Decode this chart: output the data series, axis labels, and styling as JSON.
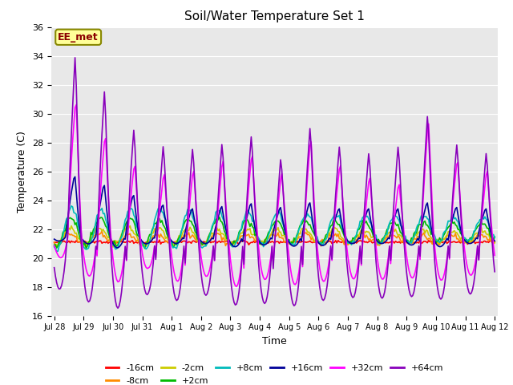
{
  "title": "Soil/Water Temperature Set 1",
  "xlabel": "Time",
  "ylabel": "Temperature (C)",
  "ylim": [
    16,
    36
  ],
  "annotation": "EE_met",
  "annotation_color": "#8B0000",
  "annotation_bg": "#FFFF99",
  "series": {
    "neg16cm": {
      "label": "-16cm",
      "color": "#FF0000",
      "linewidth": 1.2
    },
    "neg8cm": {
      "label": "-8cm",
      "color": "#FF8C00",
      "linewidth": 1.2
    },
    "neg2cm": {
      "label": "-2cm",
      "color": "#CCCC00",
      "linewidth": 1.2
    },
    "pos2cm": {
      "label": "+2cm",
      "color": "#00BB00",
      "linewidth": 1.2
    },
    "pos8cm": {
      "label": "+8cm",
      "color": "#00BBBB",
      "linewidth": 1.2
    },
    "pos16cm": {
      "label": "+16cm",
      "color": "#000099",
      "linewidth": 1.2
    },
    "pos32cm": {
      "label": "+32cm",
      "color": "#FF00FF",
      "linewidth": 1.2
    },
    "pos64cm": {
      "label": "+64cm",
      "color": "#8800BB",
      "linewidth": 1.2
    }
  },
  "tick_labels": [
    "Jul 28",
    "Jul 29",
    "Jul 30",
    "Jul 31",
    "Aug 1",
    "Aug 2",
    "Aug 3",
    "Aug 4",
    "Aug 5",
    "Aug 6",
    "Aug 7",
    "Aug 8",
    "Aug 9",
    "Aug 10",
    "Aug 11",
    "Aug 12"
  ],
  "grid_color": "#FFFFFF",
  "plot_bg": "#E8E8E8"
}
